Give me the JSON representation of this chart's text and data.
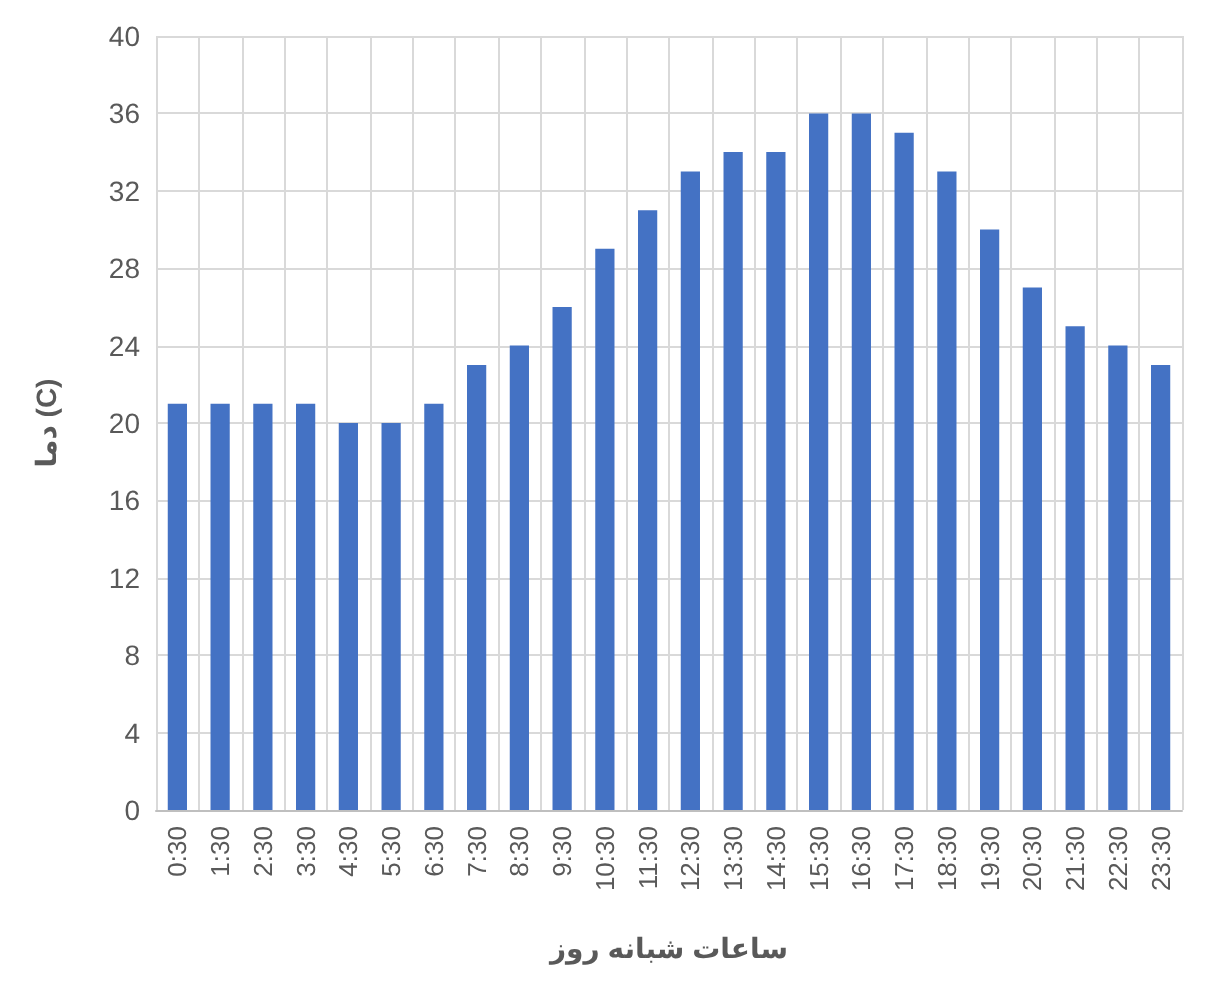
{
  "chart_data": {
    "type": "bar",
    "xlabel": "ساعات شبانه روز",
    "ylabel": "دما (C)",
    "categories": [
      "0:30",
      "1:30",
      "2:30",
      "3:30",
      "4:30",
      "5:30",
      "6:30",
      "7:30",
      "8:30",
      "9:30",
      "10:30",
      "11:30",
      "12:30",
      "13:30",
      "14:30",
      "15:30",
      "16:30",
      "17:30",
      "18:30",
      "19:30",
      "20:30",
      "21:30",
      "22:30",
      "23:30"
    ],
    "values": [
      21,
      21,
      21,
      21,
      20,
      20,
      21,
      23,
      24,
      26,
      29,
      31,
      33,
      34,
      34,
      36,
      36,
      35,
      33,
      30,
      27,
      25,
      24,
      23
    ],
    "color": "#4472c4",
    "ylim": [
      0,
      40
    ],
    "yticks": [
      0,
      4,
      8,
      12,
      16,
      20,
      24,
      28,
      32,
      36,
      40
    ],
    "grid": true
  }
}
